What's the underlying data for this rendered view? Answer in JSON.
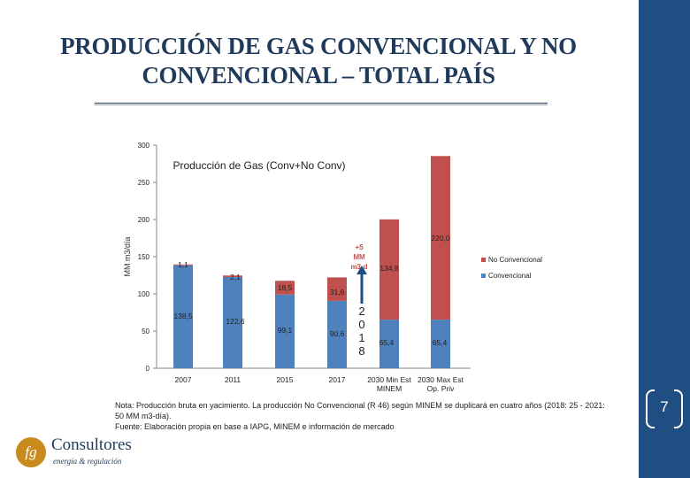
{
  "slide": {
    "title_line1": "PRODUCCIÓN DE GAS CONVENCIONAL Y NO",
    "title_line2": "CONVENCIONAL – TOTAL PAÍS",
    "page_number": "7",
    "note_line1": "Nota: Producción bruta en yacimiento. La producción No Convencional (R 46) según MINEM se duplicará en cuatro años (2018: 25 - 2021:",
    "note_line2": "50 MM m3-día).",
    "note_line3": "Fuente: Elaboración propia en base a IAPG, MINEM e información de mercado",
    "logo_name": "Consultores",
    "logo_tag": "energía & regulación",
    "logo_mark": "fg"
  },
  "chart_data": {
    "type": "bar",
    "stacked": true,
    "title": "Producción de Gas (Conv+No Conv)",
    "ylabel": "MM m3/día",
    "xlabel": "",
    "ylim": [
      0,
      300
    ],
    "yticks": [
      0,
      50,
      100,
      150,
      200,
      250,
      300
    ],
    "categories": [
      "2007",
      "2011",
      "2015",
      "2017",
      "2018",
      "2030 Min Est MINEM",
      "2030 Max Est Op. Priv"
    ],
    "category_labels": [
      "2007",
      "2011",
      "2015",
      "2017",
      "",
      "2030 Min Est\nMINEM",
      "2030 Max Est\nOp. Priv"
    ],
    "series": [
      {
        "name": "Convencional",
        "color": "#4f81bd",
        "values": [
          138.5,
          122.6,
          99.1,
          90.6,
          null,
          65.4,
          65.4
        ],
        "labels": [
          "138,5",
          "122,6",
          "99,1",
          "90,6",
          "",
          "65,4",
          "65,4"
        ]
      },
      {
        "name": "No Convencional",
        "color": "#c0504d",
        "values": [
          1.1,
          2.1,
          18.5,
          31.6,
          null,
          134.8,
          220.0
        ],
        "labels": [
          "1,1",
          "2,1",
          "18,5",
          "31,6",
          "",
          "134,8",
          "220,0"
        ]
      }
    ],
    "annotation_text": "+5 MM m3-d",
    "annotation_year": "2 0 1 8",
    "legend": [
      "No Convencional",
      "Convencional"
    ],
    "legend_position": "right",
    "grid": false
  }
}
